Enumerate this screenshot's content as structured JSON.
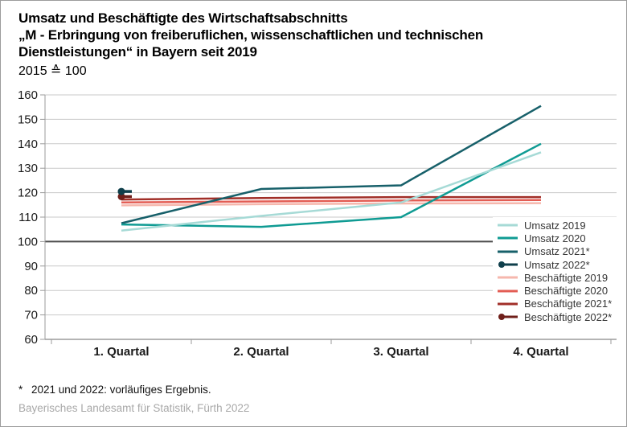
{
  "title": {
    "line1": "Umsatz und Beschäftigte des Wirtschaftsabschnitts",
    "line2": "„M - Erbringung von freiberuflichen, wissenschaftlichen und technischen",
    "line3": "Dienstleistungen“ in Bayern seit 2019",
    "index_note": "2015 ≙ 100"
  },
  "footer": {
    "footnote_marker": "*",
    "footnote_text": "2021 und 2022: vorläufiges Ergebnis.",
    "source": "Bayerisches Landesamt für Statistik, Fürth 2022"
  },
  "chart_data": {
    "type": "line",
    "title": "Umsatz und Beschäftigte des Wirtschaftsabschnitts „M - Erbringung von freiberuflichen, wissenschaftlichen und technischen Dienstleistungen“ in Bayern seit 2019",
    "index_note": "2015 ≙ 100",
    "categories": [
      "1. Quartal",
      "2. Quartal",
      "3. Quartal",
      "4. Quartal"
    ],
    "ylim": [
      60,
      160
    ],
    "yticks": [
      60,
      70,
      80,
      90,
      100,
      110,
      120,
      130,
      140,
      150,
      160
    ],
    "baseline_value": 100,
    "grid": true,
    "legend_position": "right-inside",
    "series": [
      {
        "name": "Umsatz 2019",
        "color": "#a6dad6",
        "marker": "none",
        "values": [
          104.5,
          110.5,
          116,
          136.5
        ]
      },
      {
        "name": "Umsatz 2020",
        "color": "#0f9b93",
        "marker": "none",
        "values": [
          107,
          106,
          110,
          140
        ]
      },
      {
        "name": "Umsatz 2021*",
        "color": "#17606a",
        "marker": "none",
        "values": [
          107.5,
          121.5,
          123,
          155.5
        ]
      },
      {
        "name": "Umsatz 2022*",
        "color": "#0f3f4b",
        "marker": "dot",
        "values": [
          120.5,
          null,
          null,
          null
        ]
      },
      {
        "name": "Beschäftigte 2019",
        "color": "#f6b7ad",
        "marker": "none",
        "values": [
          114.8,
          115.3,
          115.6,
          115.7
        ]
      },
      {
        "name": "Beschäftigte 2020",
        "color": "#e35d54",
        "marker": "none",
        "values": [
          116,
          116.4,
          116.8,
          117
        ]
      },
      {
        "name": "Beschäftigte 2021*",
        "color": "#a12f28",
        "marker": "none",
        "values": [
          117.2,
          117.8,
          118.2,
          118.2
        ]
      },
      {
        "name": "Beschäftigte 2022*",
        "color": "#6f1f1a",
        "marker": "dot",
        "values": [
          118.4,
          null,
          null,
          null
        ]
      }
    ],
    "colors": {
      "grid": "#c9c9c9",
      "grid_strong": "#4d4d4d",
      "axis": "#9b9b9b",
      "tick_label": "#1a1a1a",
      "legend_text": "#363636"
    }
  }
}
